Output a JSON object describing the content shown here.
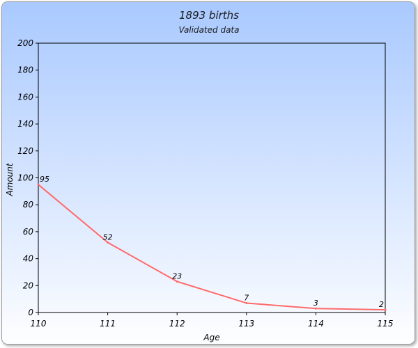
{
  "colors": {
    "background_top": "#a9c9ff",
    "background_bottom": "#ffffff",
    "series_line": "#ff6b6b",
    "axis": "#000000",
    "border": "#9a9a9a"
  },
  "chart_data": {
    "type": "line",
    "title": "1893 births",
    "subtitle": "Validated data",
    "xlabel": "Age",
    "ylabel": "Amount",
    "x": [
      "110",
      "111",
      "112",
      "113",
      "114",
      "115"
    ],
    "series": [
      {
        "values": [
          95,
          52,
          23,
          7,
          3,
          2
        ]
      }
    ],
    "data_labels": [
      "95",
      "52",
      "23",
      "7",
      "3",
      "2"
    ],
    "ylim": [
      0,
      200
    ],
    "y_ticks": [
      "0",
      "20",
      "40",
      "60",
      "80",
      "100",
      "120",
      "140",
      "160",
      "180",
      "200"
    ],
    "grid": false,
    "legend": "none"
  }
}
